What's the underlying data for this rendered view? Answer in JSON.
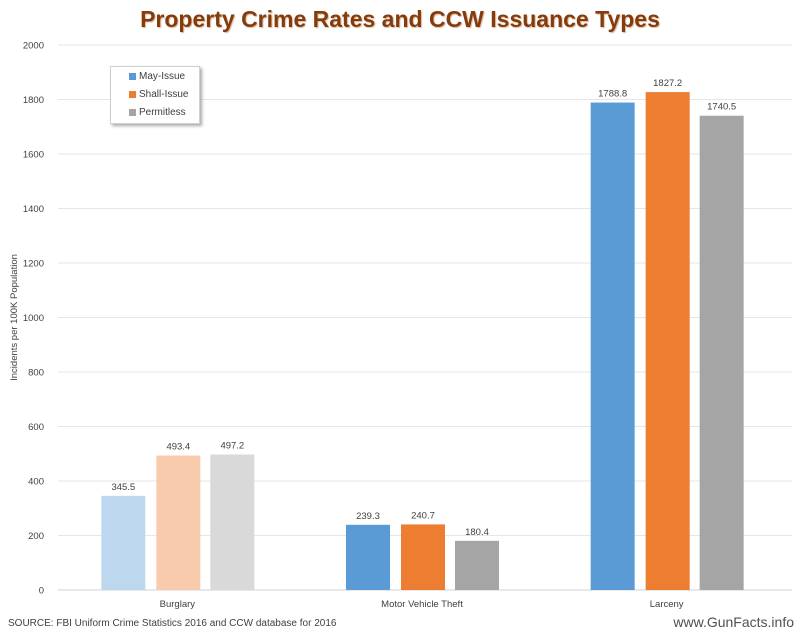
{
  "chart_data": {
    "type": "bar",
    "title": "Property Crime Rates and CCW Issuance Types",
    "ylabel": "Incidents per 100K Population",
    "xlabel": "",
    "ylim": [
      0,
      2000
    ],
    "yticks": [
      0,
      200,
      400,
      600,
      800,
      1000,
      1200,
      1400,
      1600,
      1800,
      2000
    ],
    "grid": true,
    "legend_position": "top-left",
    "categories": [
      "Burglary",
      "Motor Vehicle Theft",
      "Larceny"
    ],
    "series": [
      {
        "name": "May-Issue",
        "color": "#5b9bd5",
        "values": [
          345.5,
          239.3,
          1788.8
        ]
      },
      {
        "name": "Shall-Issue",
        "color": "#ed7d31",
        "values": [
          493.4,
          240.7,
          1827.2
        ]
      },
      {
        "name": "Permitless",
        "color": "#a5a5a5",
        "values": [
          497.2,
          180.4,
          1740.5
        ]
      }
    ],
    "faded_category_colors": [
      "#bdd7ee",
      "#f8cbad",
      "#d9d9d9"
    ]
  },
  "footer": {
    "source": "SOURCE: FBI Uniform Crime Statistics 2016 and CCW database for 2016",
    "site": "www.GunFacts.info"
  }
}
